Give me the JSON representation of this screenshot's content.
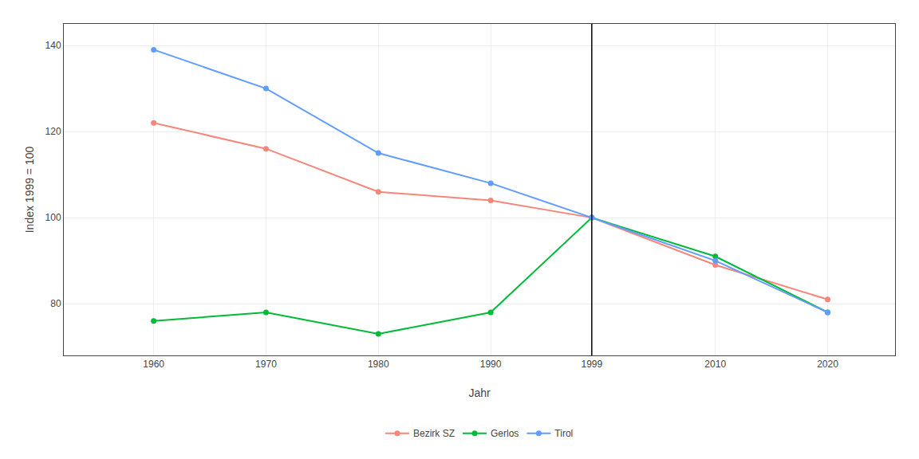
{
  "chart_data": {
    "type": "line",
    "xlabel": "Jahr",
    "ylabel": "Index 1999 = 100",
    "x": [
      1960,
      1970,
      1980,
      1990,
      1999,
      2010,
      2020
    ],
    "series": [
      {
        "name": "Bezirk SZ",
        "color": "#F4877A",
        "values": [
          122,
          116,
          106,
          104,
          100,
          89,
          81
        ]
      },
      {
        "name": "Gerlos",
        "color": "#00BA38",
        "values": [
          76,
          78,
          73,
          78,
          100,
          91,
          78
        ]
      },
      {
        "name": "Tirol",
        "color": "#619CFF",
        "values": [
          139,
          130,
          115,
          108,
          100,
          90,
          78
        ]
      }
    ],
    "vline": 1999,
    "xlim": [
      1952,
      2026
    ],
    "xticks": [
      1960,
      1970,
      1980,
      1990,
      1999,
      2010,
      2020
    ],
    "ylim": [
      68,
      145
    ],
    "yticks": [
      80,
      100,
      120,
      140
    ],
    "grid": true,
    "legend": "bottom",
    "marker": "circle",
    "line_style": "solid"
  }
}
